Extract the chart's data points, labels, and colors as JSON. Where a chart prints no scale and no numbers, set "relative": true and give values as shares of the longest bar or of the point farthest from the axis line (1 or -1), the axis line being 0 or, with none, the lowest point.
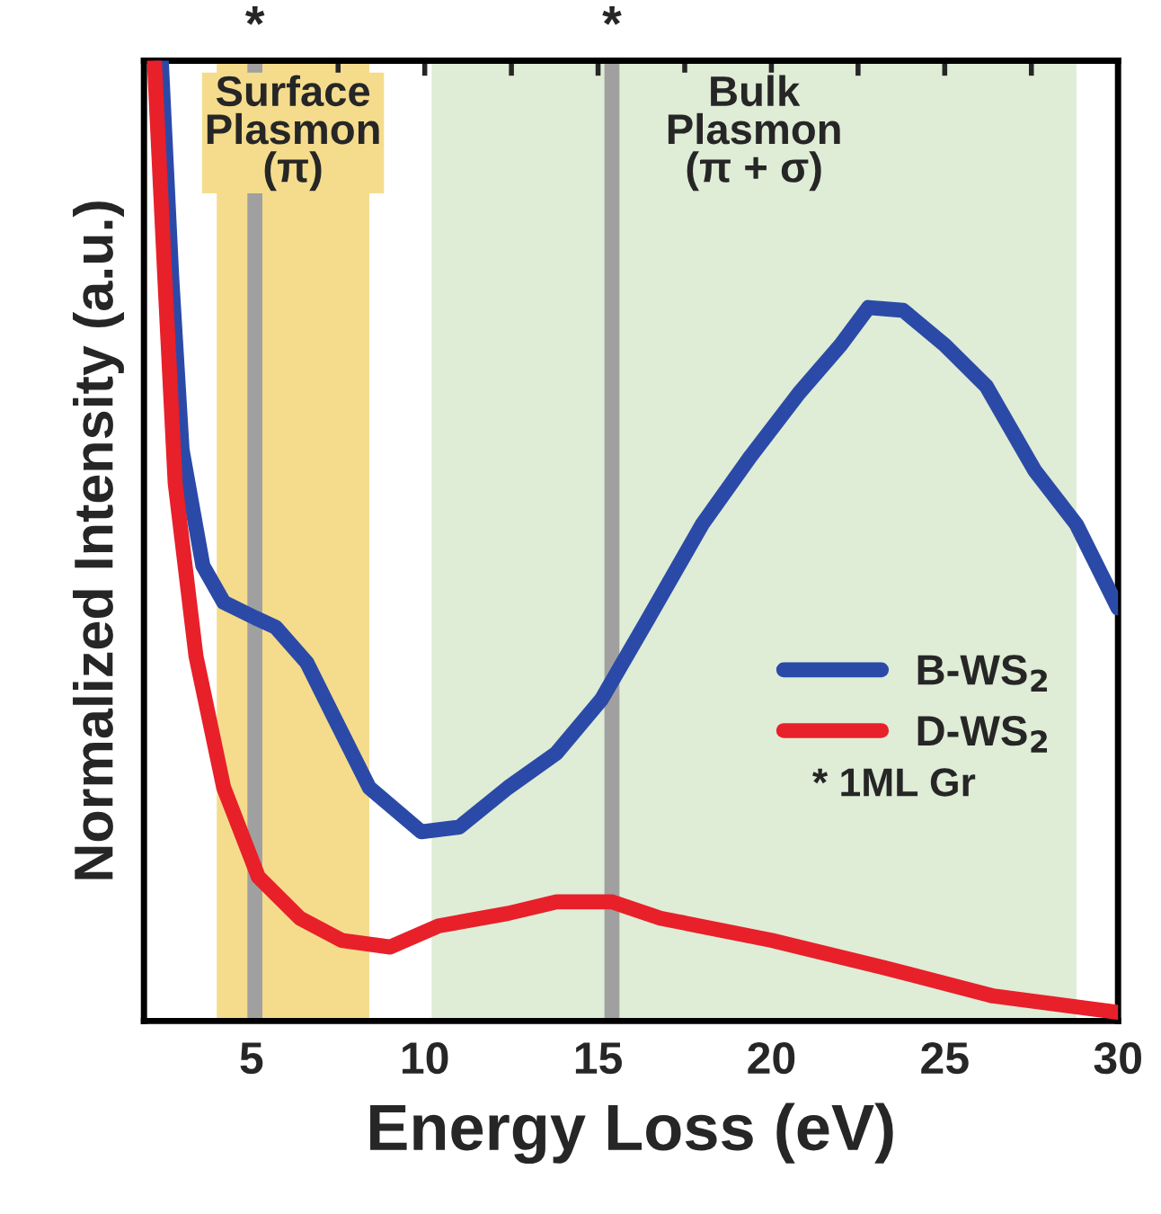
{
  "chart_data": {
    "type": "line",
    "relative": true,
    "xlabel": "Energy Loss (eV)",
    "ylabel": "Normalized Intensity (a.u.)",
    "xlim": [
      1.9,
      30
    ],
    "xticks": [
      {
        "value": 2.5,
        "label": null
      },
      5,
      {
        "value": 7.5,
        "label": null
      },
      10,
      {
        "value": 12.5,
        "label": null
      },
      15,
      {
        "value": 17.5,
        "label": null
      },
      20,
      {
        "value": 22.5,
        "label": null
      },
      25,
      {
        "value": 27.5,
        "label": null
      },
      30
    ],
    "series": [
      {
        "name": "B-WS$_{2}$",
        "color": "#2b4aa8",
        "x": [
          2.4,
          2.7,
          3.0,
          3.6,
          4.2,
          5.1,
          5.7,
          6.6,
          7.4,
          8.4,
          9.9,
          11.0,
          12.4,
          13.8,
          15.1,
          16.4,
          18.0,
          19.4,
          20.8,
          22.0,
          22.8,
          23.8,
          25.0,
          26.2,
          27.6,
          28.8,
          30.0
        ],
        "values": [
          1.0,
          0.775,
          0.595,
          0.474,
          0.436,
          0.42,
          0.41,
          0.373,
          0.315,
          0.243,
          0.197,
          0.202,
          0.243,
          0.279,
          0.335,
          0.416,
          0.517,
          0.588,
          0.654,
          0.704,
          0.743,
          0.74,
          0.704,
          0.661,
          0.573,
          0.517,
          0.43
        ]
      },
      {
        "name": "D-WS$_{2}$",
        "color": "#e8202a",
        "x": [
          2.2,
          2.5,
          2.8,
          3.4,
          4.2,
          5.2,
          6.4,
          7.6,
          9.0,
          10.4,
          12.4,
          13.8,
          15.4,
          16.8,
          20.0,
          23.2,
          26.4,
          30.0
        ],
        "values": [
          1.0,
          0.775,
          0.56,
          0.38,
          0.243,
          0.15,
          0.107,
          0.084,
          0.077,
          0.099,
          0.112,
          0.124,
          0.124,
          0.107,
          0.084,
          0.056,
          0.026,
          0.009
        ]
      }
    ],
    "bands": [
      {
        "axis": "x",
        "from": 4.0,
        "to": 8.4,
        "label": "Surface\nPlasmon\n(π)",
        "color": "#f5dc8c"
      },
      {
        "axis": "x",
        "from": 10.2,
        "to": 28.8,
        "label": "Bulk\nPlasmon\n(π + σ)",
        "color": "#dfecd6"
      }
    ],
    "ref_lines": [
      {
        "axis": "x",
        "value": 5.1,
        "label": "*",
        "color": "#a0a0a0"
      },
      {
        "axis": "x",
        "value": 15.4,
        "label": "*",
        "color": "#a0a0a0"
      }
    ],
    "annotations": [
      "* 1ML Gr"
    ],
    "legend": "right",
    "line_style": "solid",
    "grid": false
  }
}
